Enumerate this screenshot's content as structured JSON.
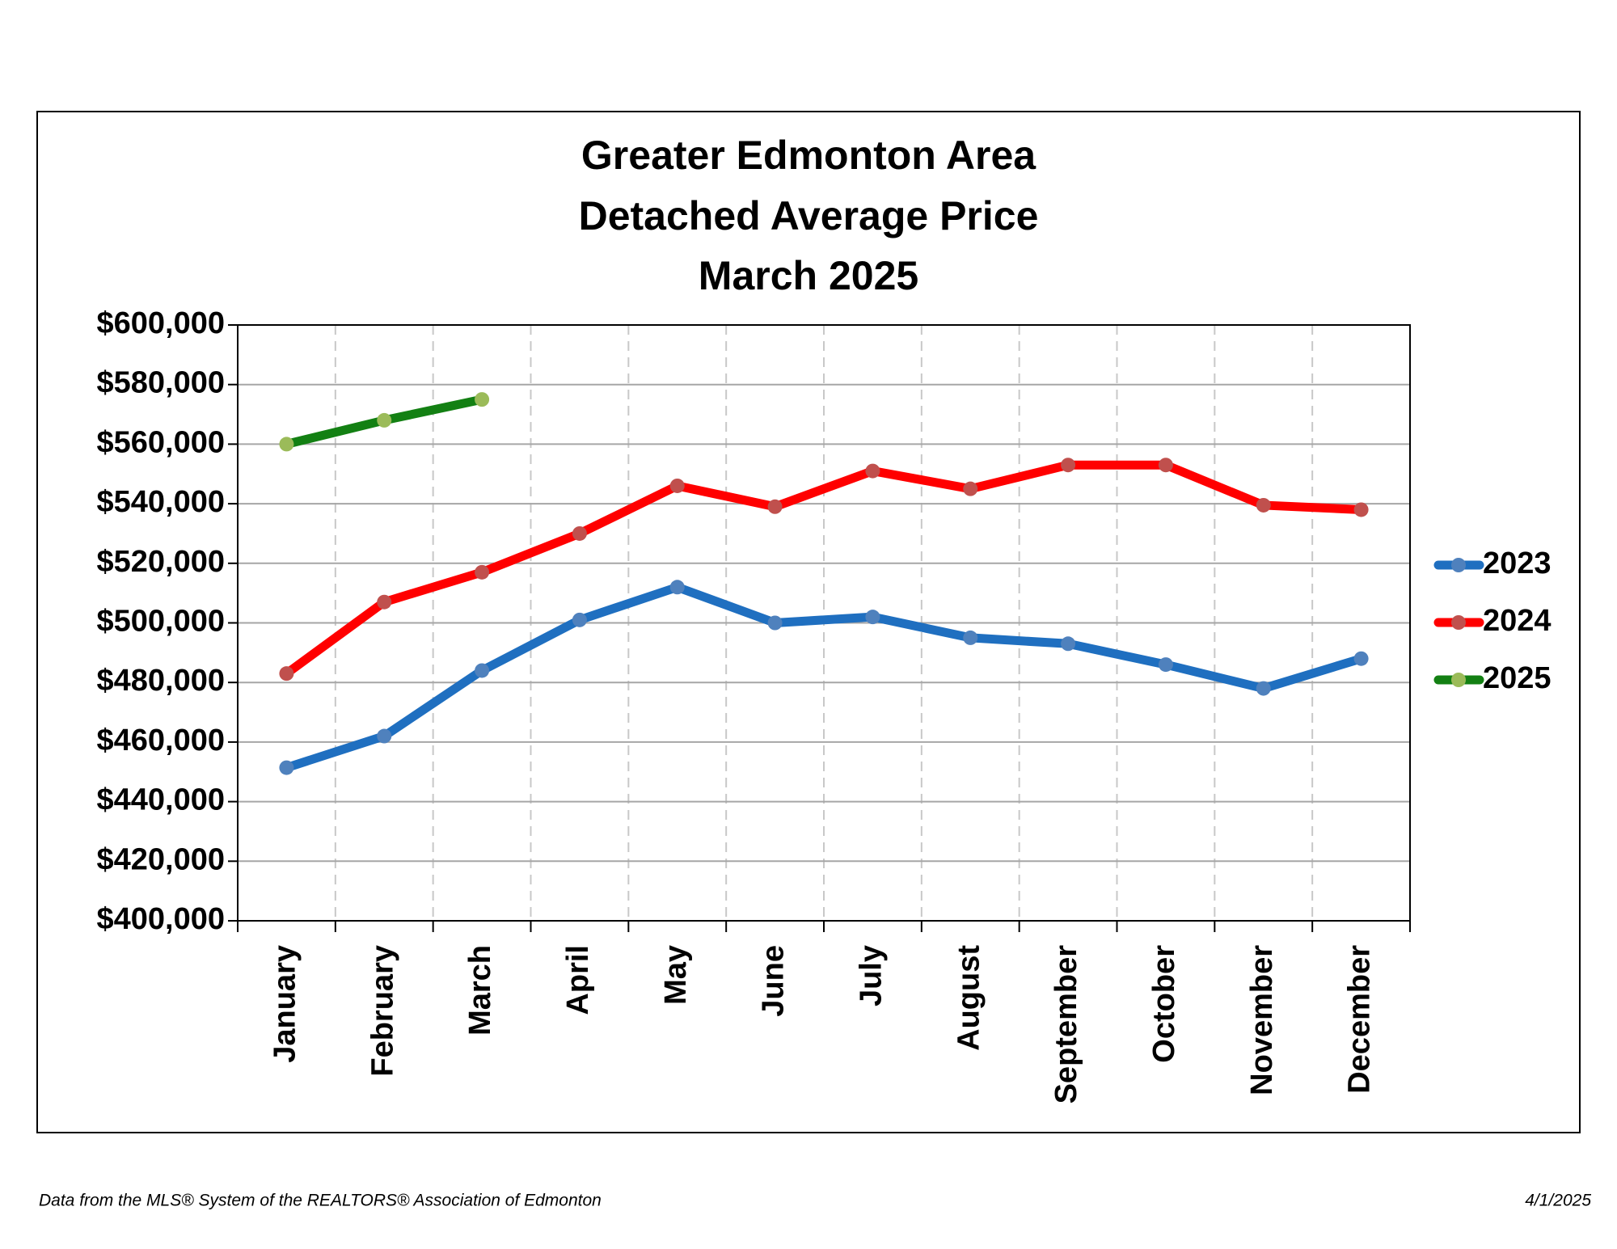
{
  "chart_data": {
    "type": "line",
    "title": [
      "Greater Edmonton Area",
      "Detached Average Price",
      "March 2025"
    ],
    "categories": [
      "January",
      "February",
      "March",
      "April",
      "May",
      "June",
      "July",
      "August",
      "September",
      "October",
      "November",
      "December"
    ],
    "series": [
      {
        "name": "2023",
        "color": "#1f6fc0",
        "marker_color": "#4f81bd",
        "values": [
          451400,
          462000,
          484000,
          501000,
          512000,
          500000,
          502000,
          495000,
          493000,
          486000,
          478000,
          488000
        ]
      },
      {
        "name": "2024",
        "color": "#ff0000",
        "marker_color": "#c0504d",
        "values": [
          483000,
          507000,
          517000,
          530000,
          546000,
          539000,
          551000,
          545000,
          553000,
          553000,
          539500,
          538000
        ]
      },
      {
        "name": "2025",
        "color": "#138013",
        "marker_color": "#9bbb59",
        "values": [
          560000,
          568000,
          575000,
          null,
          null,
          null,
          null,
          null,
          null,
          null,
          null,
          null
        ]
      }
    ],
    "ylim": [
      400000,
      600000
    ],
    "yticks": [
      {
        "value": 400000,
        "label": "$400,000"
      },
      {
        "value": 420000,
        "label": "$420,000"
      },
      {
        "value": 440000,
        "label": "$440,000"
      },
      {
        "value": 460000,
        "label": "$460,000"
      },
      {
        "value": 480000,
        "label": "$480,000"
      },
      {
        "value": 500000,
        "label": "$500,000"
      },
      {
        "value": 520000,
        "label": "$520,000"
      },
      {
        "value": 540000,
        "label": "$540,000"
      },
      {
        "value": 560000,
        "label": "$560,000"
      },
      {
        "value": 580000,
        "label": "$580,000"
      },
      {
        "value": 600000,
        "label": "$600,000"
      }
    ],
    "grid": true,
    "legend": "right"
  },
  "footer": {
    "source": "Data from the MLS® System of the REALTORS® Association of Edmonton",
    "date": "4/1/2025"
  }
}
